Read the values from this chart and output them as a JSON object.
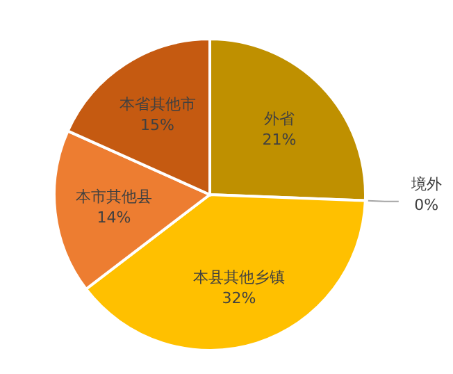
{
  "chart_data": {
    "type": "pie",
    "categories": [
      "外省",
      "境外",
      "本县其他乡镇",
      "本市其他县",
      "本省其他市"
    ],
    "values": [
      21,
      0,
      32,
      14,
      15
    ],
    "value_labels": [
      "21%",
      "0%",
      "32%",
      "14%",
      "15%"
    ],
    "colors": [
      "#bf9000",
      "#a5a5a5",
      "#ffc000",
      "#ed7d31",
      "#c55a11"
    ]
  }
}
